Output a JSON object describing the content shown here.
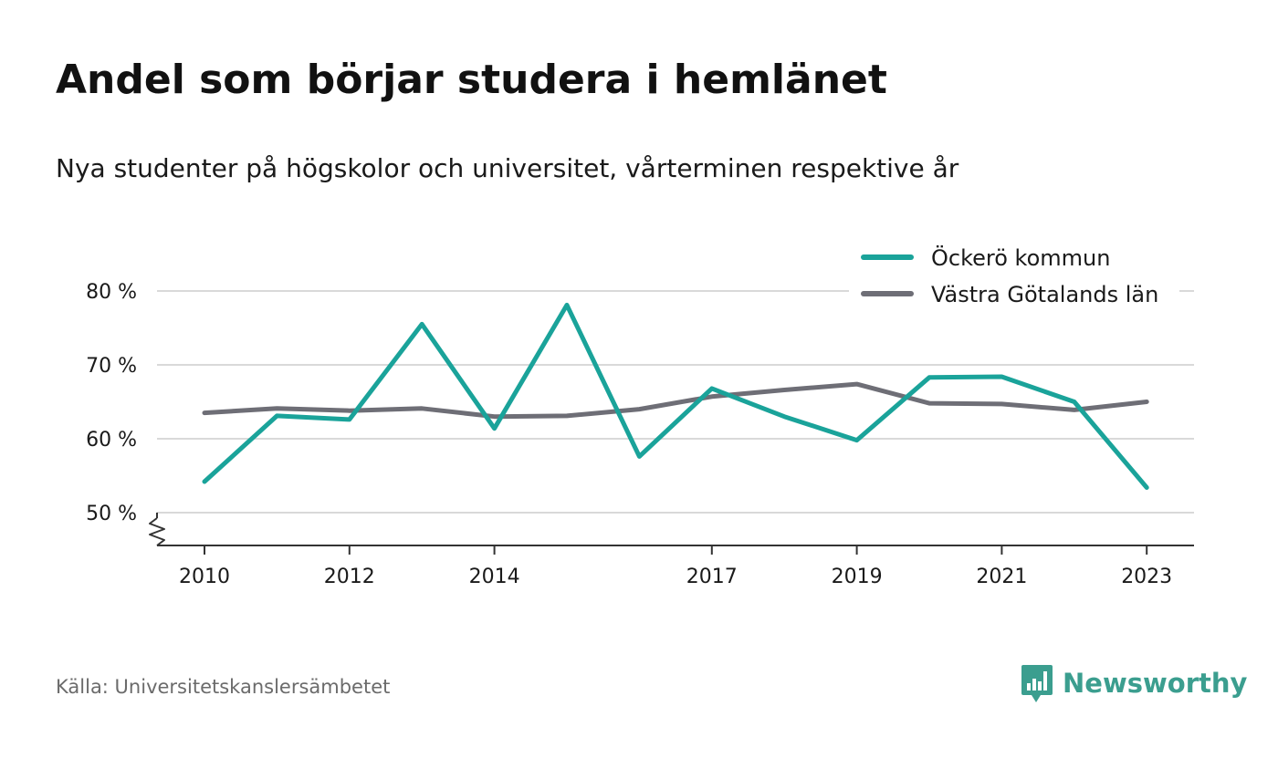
{
  "colors": {
    "series_1": "#1aa39a",
    "series_2": "#6e6e76",
    "grid": "#d9d9d9",
    "axis": "#333333",
    "brand": "#3b9e8f",
    "source_text": "#6b6b6b"
  },
  "source": "Källa: Universitetskanslersämbetet",
  "brand": {
    "name": "Newsworthy",
    "logo_icon": "newsworthy-logo-icon"
  },
  "chart_data": {
    "type": "line",
    "title": "Andel som börjar studera i hemlänet",
    "subtitle": "Nya studenter på högskolor och universitet, vårterminen respektive år",
    "x": [
      2010,
      2011,
      2012,
      2013,
      2014,
      2015,
      2016,
      2017,
      2018,
      2019,
      2020,
      2021,
      2022,
      2023
    ],
    "x_ticks": [
      2010,
      2012,
      2014,
      2017,
      2019,
      2021,
      2023
    ],
    "x_tick_labels": [
      "2010",
      "2012",
      "2014",
      "2017",
      "2019",
      "2021",
      "2023"
    ],
    "y_ticks": [
      50,
      60,
      70,
      80
    ],
    "y_tick_labels": [
      "50 %",
      "60 %",
      "70 %",
      "80 %"
    ],
    "ylim": [
      50,
      80
    ],
    "y_axis_break": true,
    "grid": true,
    "legend_position": "top-right",
    "series": [
      {
        "name": "Öckerö kommun",
        "color": "#1aa39a",
        "values": [
          54.2,
          63.1,
          62.6,
          75.5,
          61.4,
          78.1,
          57.6,
          66.8,
          63.0,
          59.8,
          68.3,
          68.4,
          65.0,
          53.4
        ]
      },
      {
        "name": "Västra Götalands län",
        "color": "#6e6e76",
        "values": [
          63.5,
          64.1,
          63.8,
          64.1,
          63.0,
          63.1,
          64.0,
          65.7,
          66.6,
          67.4,
          64.8,
          64.7,
          63.9,
          65.0
        ]
      }
    ]
  }
}
